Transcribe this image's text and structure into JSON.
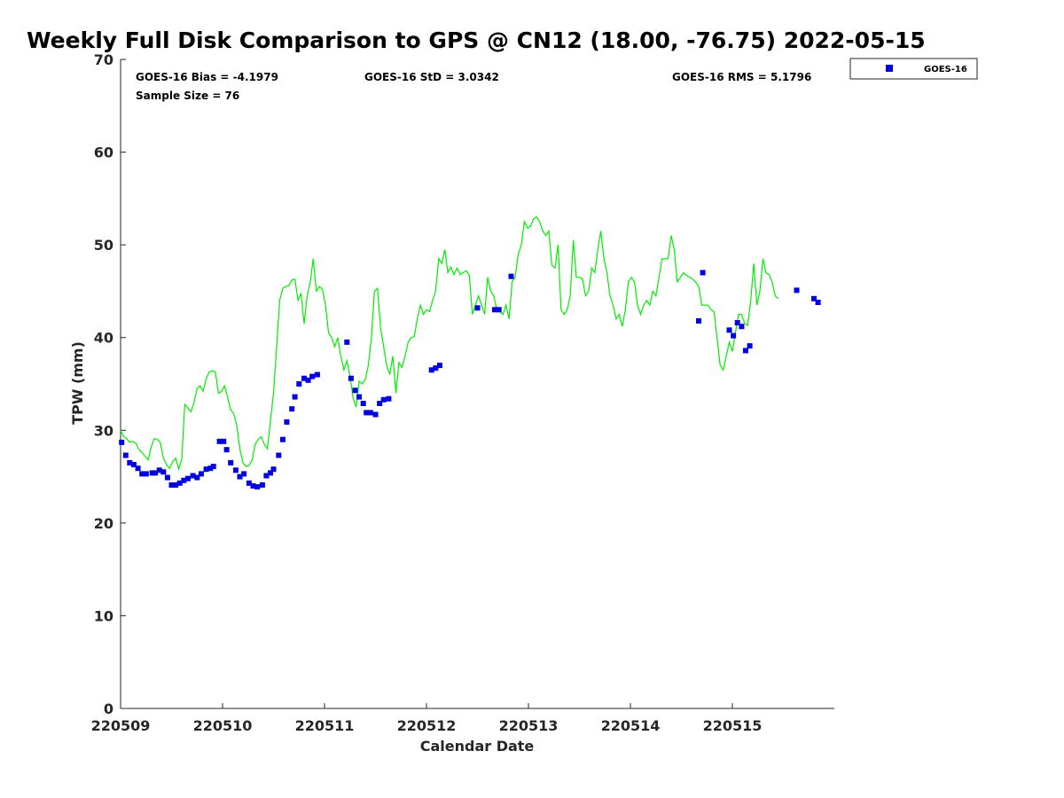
{
  "chart_data": {
    "type": "scatter",
    "title": "Weekly Full Disk Comparison to GPS @ CN12 (18.00, -76.75) 2022-05-15",
    "xlabel": "Calendar Date",
    "ylabel": "TPW (mm)",
    "xlim": [
      0,
      7
    ],
    "ylim": [
      0,
      70
    ],
    "xticks": [
      {
        "value": 0,
        "label": "220509"
      },
      {
        "value": 1,
        "label": "220510"
      },
      {
        "value": 2,
        "label": "220511"
      },
      {
        "value": 3,
        "label": "220512"
      },
      {
        "value": 4,
        "label": "220513"
      },
      {
        "value": 5,
        "label": "220514"
      },
      {
        "value": 6,
        "label": "220515"
      }
    ],
    "yticks": [
      0,
      10,
      20,
      30,
      40,
      50,
      60,
      70
    ],
    "grid": false,
    "legend_position": "top-right, outside plot",
    "stats": {
      "bias": "GOES-16 Bias = -4.1979",
      "std": "GOES-16 StD = 3.0342",
      "rms": "GOES-16 RMS = 5.1796",
      "sample": "Sample Size = 76"
    },
    "series": [
      {
        "name": "GOES-16",
        "marker": "square",
        "color": "#0000e0",
        "points": [
          [
            0.01,
            28.7
          ],
          [
            0.05,
            27.3
          ],
          [
            0.09,
            26.5
          ],
          [
            0.13,
            26.3
          ],
          [
            0.17,
            25.9
          ],
          [
            0.21,
            25.3
          ],
          [
            0.25,
            25.3
          ],
          [
            0.31,
            25.4
          ],
          [
            0.34,
            25.4
          ],
          [
            0.38,
            25.7
          ],
          [
            0.42,
            25.5
          ],
          [
            0.46,
            24.9
          ],
          [
            0.5,
            24.1
          ],
          [
            0.54,
            24.1
          ],
          [
            0.58,
            24.3
          ],
          [
            0.62,
            24.6
          ],
          [
            0.66,
            24.8
          ],
          [
            0.71,
            25.1
          ],
          [
            0.75,
            24.9
          ],
          [
            0.79,
            25.3
          ],
          [
            0.84,
            25.8
          ],
          [
            0.88,
            25.9
          ],
          [
            0.91,
            26.1
          ],
          [
            0.97,
            28.8
          ],
          [
            1.01,
            28.8
          ],
          [
            1.04,
            27.9
          ],
          [
            1.08,
            26.5
          ],
          [
            1.13,
            25.7
          ],
          [
            1.17,
            25.0
          ],
          [
            1.21,
            25.3
          ],
          [
            1.26,
            24.3
          ],
          [
            1.3,
            24.0
          ],
          [
            1.34,
            23.9
          ],
          [
            1.39,
            24.1
          ],
          [
            1.43,
            25.1
          ],
          [
            1.47,
            25.4
          ],
          [
            1.5,
            25.8
          ],
          [
            1.55,
            27.3
          ],
          [
            1.59,
            29.0
          ],
          [
            1.63,
            30.9
          ],
          [
            1.68,
            32.3
          ],
          [
            1.71,
            33.6
          ],
          [
            1.75,
            35.0
          ],
          [
            1.8,
            35.6
          ],
          [
            1.84,
            35.4
          ],
          [
            1.88,
            35.8
          ],
          [
            1.93,
            36.0
          ],
          [
            2.22,
            39.5
          ],
          [
            2.26,
            35.6
          ],
          [
            2.3,
            34.3
          ],
          [
            2.34,
            33.6
          ],
          [
            2.38,
            32.9
          ],
          [
            2.41,
            31.9
          ],
          [
            2.45,
            31.9
          ],
          [
            2.5,
            31.7
          ],
          [
            2.54,
            32.9
          ],
          [
            2.58,
            33.3
          ],
          [
            2.63,
            33.4
          ],
          [
            3.05,
            36.5
          ],
          [
            3.09,
            36.7
          ],
          [
            3.13,
            37.0
          ],
          [
            3.5,
            43.2
          ],
          [
            3.67,
            43.0
          ],
          [
            3.71,
            43.0
          ],
          [
            3.83,
            46.6
          ],
          [
            5.67,
            41.8
          ],
          [
            5.71,
            47.0
          ],
          [
            5.97,
            40.8
          ],
          [
            6.01,
            40.2
          ],
          [
            6.05,
            41.6
          ],
          [
            6.09,
            41.2
          ],
          [
            6.13,
            38.6
          ],
          [
            6.17,
            39.1
          ],
          [
            6.63,
            45.1
          ],
          [
            6.8,
            44.2
          ],
          [
            6.84,
            43.8
          ]
        ]
      },
      {
        "name": "GPS",
        "color": "#00ee00",
        "values_x_step": 0.03,
        "line": [
          30.0,
          29.3,
          29.1,
          28.7,
          28.8,
          28.6,
          27.9,
          27.6,
          27.2,
          26.8,
          28.2,
          29.1,
          29.0,
          28.7,
          27.0,
          26.3,
          25.9,
          26.6,
          27.0,
          25.8,
          26.9,
          32.8,
          32.4,
          32.0,
          33.0,
          34.5,
          34.8,
          34.2,
          35.6,
          36.3,
          36.4,
          36.3,
          34.0,
          34.2,
          34.8,
          33.5,
          32.2,
          31.8,
          30.5,
          28.0,
          26.5,
          26.1,
          26.2,
          26.8,
          28.5,
          29.0,
          29.3,
          28.5,
          28.0,
          31.0,
          34.0,
          39.0,
          44.0,
          45.3,
          45.5,
          45.6,
          46.2,
          46.3,
          44.0,
          44.8,
          41.5,
          44.5,
          46.0,
          48.5,
          45.0,
          45.5,
          45.2,
          43.5,
          40.5,
          40.0,
          39.0,
          40.0,
          38.0,
          36.5,
          37.5,
          35.8,
          33.5,
          32.5,
          35.3,
          35.0,
          35.5,
          37.0,
          40.0,
          45.0,
          45.3,
          41.0,
          39.0,
          37.0,
          36.0,
          38.0,
          34.0,
          37.3,
          36.8,
          38.0,
          39.5,
          40.0,
          40.1,
          42.0,
          43.5,
          42.5,
          43.0,
          42.8,
          44.0,
          45.0,
          48.5,
          48.0,
          49.5,
          47.0,
          47.6,
          46.8,
          47.5,
          46.8,
          47.0,
          47.2,
          46.7,
          42.5,
          43.5,
          44.5,
          43.5,
          42.5,
          46.5,
          45.0,
          44.5,
          43.0,
          42.8,
          42.5,
          43.5,
          42.0,
          46.0,
          46.5,
          49.0,
          50.0,
          52.5,
          51.8,
          52.0,
          52.8,
          53.0,
          52.5,
          51.5,
          51.0,
          51.5,
          47.8,
          47.5,
          50.0,
          43.0,
          42.5,
          43.0,
          44.5,
          50.5,
          46.5,
          46.5,
          46.3,
          44.5,
          45.0,
          47.5,
          47.0,
          49.5,
          51.5,
          48.5,
          47.0,
          44.5,
          43.5,
          42.0,
          42.5,
          41.2,
          43.0,
          46.0,
          46.5,
          46.0,
          43.5,
          42.5,
          43.5,
          44.0,
          43.5,
          45.0,
          44.5,
          46.5,
          48.5,
          48.5,
          48.5,
          51.0,
          49.5,
          46.0,
          46.5,
          47.0,
          46.7,
          46.5,
          46.3,
          46.0,
          45.5,
          43.5,
          43.5,
          43.5,
          43.0,
          42.8,
          40.0,
          37.0,
          36.5,
          38.0,
          39.5,
          38.5,
          40.5,
          42.5,
          42.5,
          41.5,
          41.3,
          44.0,
          48.0,
          43.5,
          45.0,
          48.5,
          47.0,
          46.8,
          46.0,
          44.5,
          44.2
        ]
      }
    ]
  }
}
